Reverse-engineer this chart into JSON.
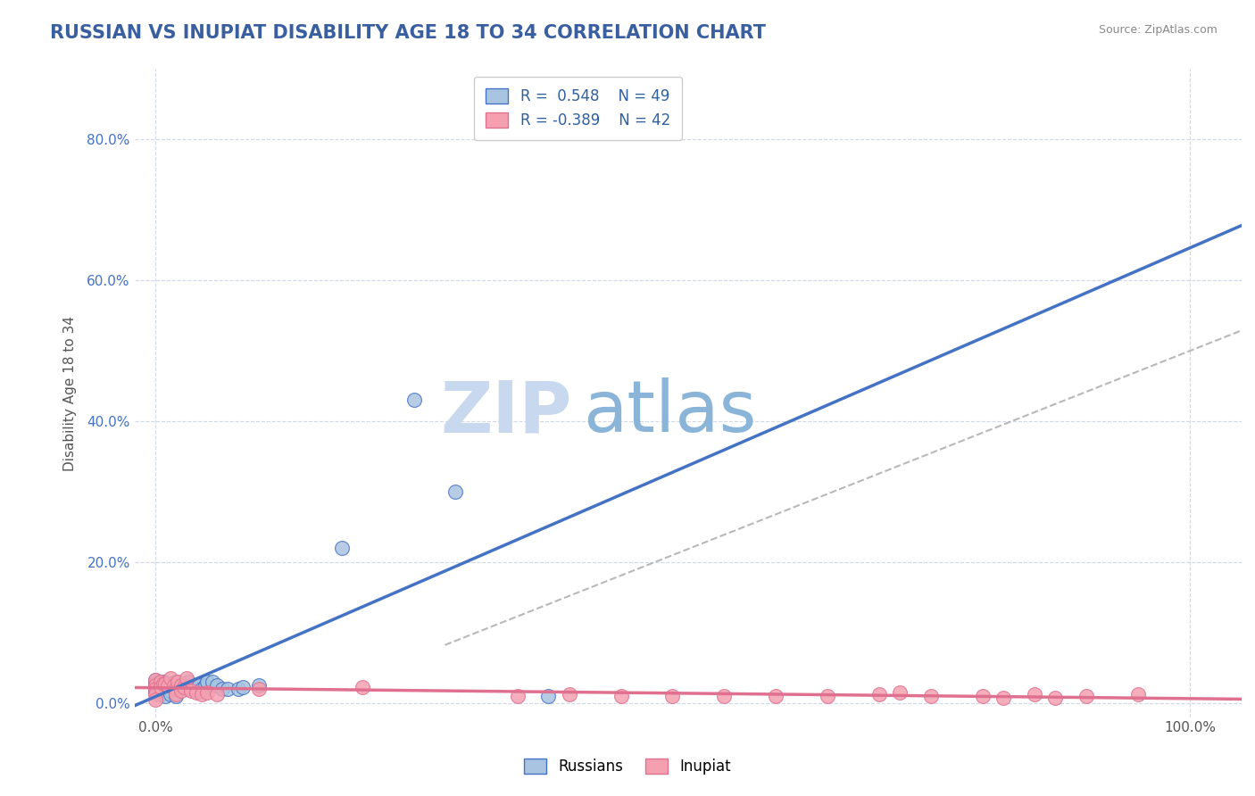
{
  "title": "RUSSIAN VS INUPIAT DISABILITY AGE 18 TO 34 CORRELATION CHART",
  "source_text": "Source: ZipAtlas.com",
  "ylabel": "Disability Age 18 to 34",
  "y_tick_labels": [
    "0.0%",
    "20.0%",
    "40.0%",
    "60.0%",
    "80.0%"
  ],
  "y_tick_values": [
    0.0,
    20.0,
    40.0,
    60.0,
    80.0
  ],
  "xlim": [
    -2.0,
    105.0
  ],
  "ylim": [
    -2.0,
    90.0
  ],
  "title_color": "#3a5fa0",
  "title_fontsize": 15,
  "r_russian": 0.548,
  "n_russian": 49,
  "r_inupiat": -0.389,
  "n_inupiat": 42,
  "russian_color": "#a8c4e0",
  "inupiat_color": "#f4a0b0",
  "russian_line_color": "#4472c4",
  "inupiat_line_color": "#e07090",
  "trend_line_color": "#b8b8b8",
  "russian_scatter": [
    [
      0.0,
      3.3
    ],
    [
      0.0,
      2.8
    ],
    [
      0.0,
      2.2
    ],
    [
      0.0,
      1.8
    ],
    [
      0.0,
      1.5
    ],
    [
      0.5,
      2.5
    ],
    [
      0.5,
      2.0
    ],
    [
      0.5,
      1.2
    ],
    [
      0.8,
      3.0
    ],
    [
      1.0,
      2.5
    ],
    [
      1.0,
      1.8
    ],
    [
      1.0,
      1.5
    ],
    [
      1.0,
      1.0
    ],
    [
      1.5,
      2.8
    ],
    [
      1.5,
      2.2
    ],
    [
      1.5,
      1.8
    ],
    [
      1.5,
      1.2
    ],
    [
      1.8,
      2.2
    ],
    [
      2.0,
      3.0
    ],
    [
      2.0,
      2.5
    ],
    [
      2.0,
      2.0
    ],
    [
      2.0,
      1.5
    ],
    [
      2.0,
      1.0
    ],
    [
      2.2,
      2.0
    ],
    [
      2.5,
      2.5
    ],
    [
      2.5,
      2.2
    ],
    [
      2.8,
      2.8
    ],
    [
      2.8,
      2.2
    ],
    [
      3.0,
      2.5
    ],
    [
      3.0,
      2.0
    ],
    [
      3.2,
      3.0
    ],
    [
      3.5,
      2.2
    ],
    [
      3.8,
      2.0
    ],
    [
      4.0,
      2.5
    ],
    [
      4.2,
      2.5
    ],
    [
      4.5,
      2.0
    ],
    [
      4.8,
      2.5
    ],
    [
      5.0,
      3.0
    ],
    [
      5.5,
      3.0
    ],
    [
      6.0,
      2.5
    ],
    [
      6.5,
      2.0
    ],
    [
      7.0,
      2.0
    ],
    [
      8.0,
      2.0
    ],
    [
      8.5,
      2.2
    ],
    [
      10.0,
      2.5
    ],
    [
      18.0,
      22.0
    ],
    [
      25.0,
      43.0
    ],
    [
      29.0,
      30.0
    ],
    [
      38.0,
      1.0
    ]
  ],
  "inupiat_scatter": [
    [
      0.0,
      3.3
    ],
    [
      0.0,
      2.5
    ],
    [
      0.0,
      2.0
    ],
    [
      0.0,
      1.2
    ],
    [
      0.0,
      0.5
    ],
    [
      0.5,
      3.0
    ],
    [
      0.5,
      2.2
    ],
    [
      0.8,
      2.8
    ],
    [
      1.0,
      2.8
    ],
    [
      1.2,
      2.5
    ],
    [
      1.5,
      3.5
    ],
    [
      1.8,
      2.5
    ],
    [
      2.0,
      2.0
    ],
    [
      2.0,
      1.2
    ],
    [
      2.2,
      3.0
    ],
    [
      2.5,
      2.5
    ],
    [
      2.5,
      1.8
    ],
    [
      2.8,
      2.2
    ],
    [
      3.0,
      3.5
    ],
    [
      3.5,
      1.8
    ],
    [
      4.0,
      1.5
    ],
    [
      4.5,
      1.2
    ],
    [
      5.0,
      1.5
    ],
    [
      6.0,
      1.2
    ],
    [
      10.0,
      2.0
    ],
    [
      20.0,
      2.2
    ],
    [
      35.0,
      1.0
    ],
    [
      40.0,
      1.2
    ],
    [
      45.0,
      1.0
    ],
    [
      50.0,
      1.0
    ],
    [
      55.0,
      1.0
    ],
    [
      60.0,
      1.0
    ],
    [
      65.0,
      1.0
    ],
    [
      70.0,
      1.2
    ],
    [
      72.0,
      1.5
    ],
    [
      75.0,
      1.0
    ],
    [
      80.0,
      1.0
    ],
    [
      82.0,
      0.8
    ],
    [
      85.0,
      1.2
    ],
    [
      87.0,
      0.8
    ],
    [
      90.0,
      1.0
    ],
    [
      95.0,
      1.2
    ]
  ],
  "watermark_zip": "ZIP",
  "watermark_atlas": "atlas",
  "watermark_color_zip": "#c8d8ee",
  "watermark_color_atlas": "#8ab4d8",
  "background_color": "#ffffff",
  "grid_color": "#d0d8e8",
  "legend_text_color": "#3060a0",
  "tick_color": "#4472c4",
  "axis_label_color": "#555555"
}
